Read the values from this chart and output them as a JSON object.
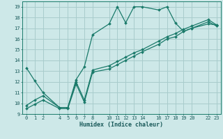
{
  "xlabel": "Humidex (Indice chaleur)",
  "bg_color": "#cde8e8",
  "grid_color": "#a8cccc",
  "line_color": "#1a7a6a",
  "xlim": [
    -0.5,
    23.5
  ],
  "ylim": [
    9,
    19.5
  ],
  "xticks": [
    0,
    1,
    2,
    4,
    5,
    6,
    7,
    8,
    10,
    11,
    12,
    13,
    14,
    16,
    17,
    18,
    19,
    20,
    22,
    23
  ],
  "yticks": [
    9,
    10,
    11,
    12,
    13,
    14,
    15,
    16,
    17,
    18,
    19
  ],
  "line1_x": [
    0,
    1,
    2,
    4,
    5,
    6,
    7,
    8,
    10,
    11,
    12,
    13,
    14,
    16,
    17,
    18,
    19,
    20,
    22,
    23
  ],
  "line1_y": [
    13.3,
    12.1,
    11.0,
    9.6,
    9.6,
    12.2,
    13.4,
    16.4,
    17.4,
    19.0,
    17.5,
    19.0,
    19.0,
    18.7,
    19.0,
    17.5,
    16.7,
    17.0,
    17.4,
    17.3
  ],
  "line2_x": [
    0,
    1,
    2,
    4,
    5,
    6,
    7,
    8,
    10,
    11,
    12,
    13,
    14,
    16,
    17,
    18,
    19,
    20,
    22,
    23
  ],
  "line2_y": [
    9.8,
    10.3,
    10.7,
    9.6,
    9.6,
    12.0,
    10.3,
    13.1,
    13.5,
    13.9,
    14.3,
    14.7,
    15.0,
    15.8,
    16.2,
    16.5,
    16.9,
    17.2,
    17.8,
    17.3
  ],
  "line3_x": [
    0,
    1,
    2,
    4,
    5,
    6,
    7,
    8,
    10,
    11,
    12,
    13,
    14,
    16,
    17,
    18,
    19,
    20,
    22,
    23
  ],
  "line3_y": [
    9.5,
    9.9,
    10.3,
    9.5,
    9.5,
    11.8,
    10.1,
    12.9,
    13.2,
    13.6,
    14.0,
    14.4,
    14.8,
    15.5,
    16.0,
    16.2,
    16.7,
    17.0,
    17.6,
    17.2
  ]
}
